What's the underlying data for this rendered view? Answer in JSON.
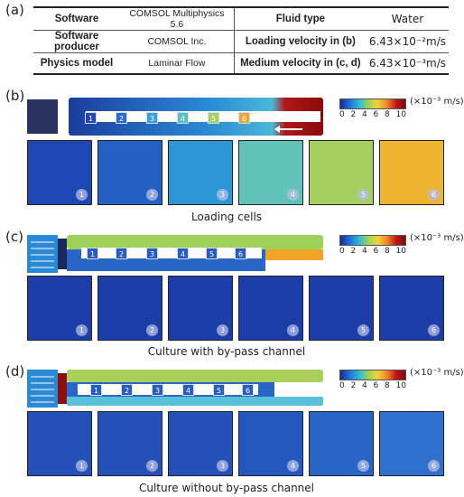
{
  "panels": {
    "a": "(a)",
    "b": "(b)",
    "c": "(c)",
    "d": "(d)"
  },
  "table": {
    "rows": [
      {
        "k1": "Software",
        "v1": "COMSOL Multiphysics 5.6",
        "k2": "Fluid type",
        "v2": "Water"
      },
      {
        "k1": "Software producer",
        "v1": "COMSOL Inc.",
        "k2": "Loading velocity in (b)",
        "v2": "6.43×10⁻²m/s"
      },
      {
        "k1": "Physics model",
        "v1": "Laminar Flow",
        "k2": "Medium velocity in (c, d)",
        "v2": "6.43×10⁻³m/s"
      }
    ]
  },
  "colorbar": {
    "ticks": [
      "0",
      "2",
      "4",
      "6",
      "8",
      "10"
    ],
    "unit": "(×10⁻³ m/s)"
  },
  "cell_numbers": [
    "1",
    "2",
    "3",
    "4",
    "5",
    "6"
  ],
  "captions": {
    "b": "Loading cells",
    "c": "Culture with by-pass channel",
    "d": "Culture without by-pass channel"
  },
  "colors": {
    "low": "#1a3a9e",
    "mid": "#2fb8d8",
    "high": "#c2161a",
    "max": "#8a0a0a"
  }
}
